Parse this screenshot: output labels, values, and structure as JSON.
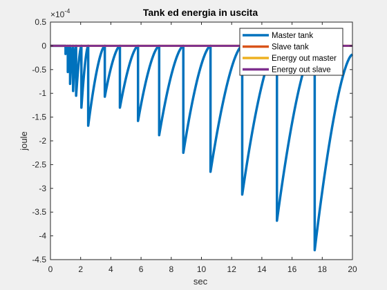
{
  "chart_data": {
    "type": "line",
    "title": "Tank ed energia in uscita",
    "xlabel": "sec",
    "ylabel": "joule",
    "exponent_label": "×10",
    "exponent_power": "-4",
    "xlim": [
      0,
      20
    ],
    "ylim": [
      -4.5,
      0.5
    ],
    "xticks": [
      0,
      2,
      4,
      6,
      8,
      10,
      12,
      14,
      16,
      18,
      20
    ],
    "yticks": [
      0.5,
      0,
      -0.5,
      -1,
      -1.5,
      -2,
      -2.5,
      -3,
      -3.5,
      -4,
      -4.5
    ],
    "ytick_labels": [
      "0.5",
      "0",
      "-0.5",
      "-1",
      "-1.5",
      "-2",
      "-2.5",
      "-3",
      "-3.5",
      "-4",
      "-4.5"
    ],
    "legend_position": "top-right",
    "grid": false,
    "series": [
      {
        "name": "Master tank",
        "color": "#0072bd",
        "kind": "decaying_drops",
        "drop_times": [
          1.0,
          1.15,
          1.3,
          1.5,
          1.7,
          2.05,
          2.5,
          3.6,
          4.6,
          5.8,
          7.2,
          8.8,
          10.6,
          12.7,
          15.0,
          17.5
        ],
        "drop_minima": [
          -0.17,
          -0.55,
          -0.8,
          -0.95,
          -1.05,
          -1.3,
          -1.68,
          -1.07,
          -1.3,
          -1.58,
          -1.88,
          -2.25,
          -2.65,
          -3.13,
          -3.68,
          -4.3
        ],
        "end_value": -0.18
      },
      {
        "name": "Slave tank",
        "color": "#d95319",
        "kind": "constant",
        "value": 0
      },
      {
        "name": "Energy out master",
        "color": "#edb120",
        "kind": "constant",
        "value": 0
      },
      {
        "name": "Energy out slave",
        "color": "#7e2f8e",
        "kind": "constant",
        "value": 0
      }
    ]
  }
}
